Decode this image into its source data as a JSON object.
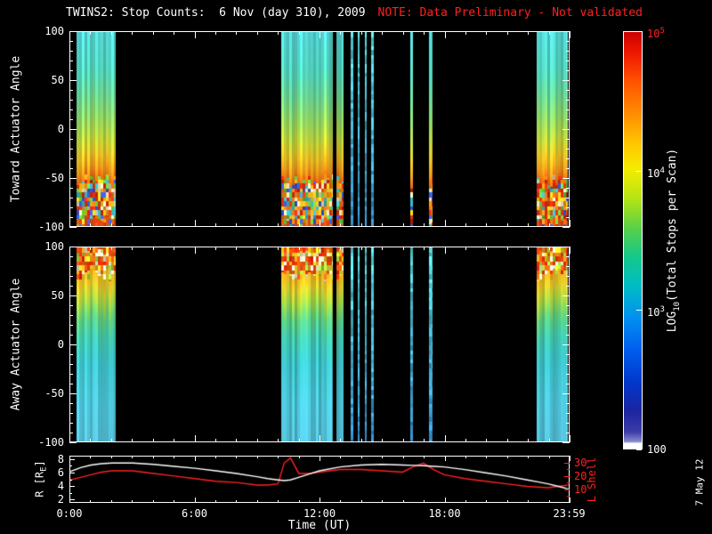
{
  "title": {
    "main": "TWINS2: Stop Counts:  6 Nov (day 310), 2009",
    "note": "NOTE: Data Preliminary - Not validated"
  },
  "date_stamp": "7 May 12",
  "colors": {
    "background": "#000000",
    "foreground": "#ffffff",
    "note": "#ff2020",
    "l_shell": "#ff2020"
  },
  "x_axis": {
    "label": "Time (UT)",
    "range_hours": [
      0,
      24
    ],
    "tick_hours": [
      0,
      6,
      12,
      18,
      23.983
    ],
    "tick_labels": [
      "0:00",
      "6:00",
      "12:00",
      "18:00",
      "23:59"
    ]
  },
  "panels": {
    "toward": {
      "ylabel": "Toward Actuator Angle",
      "y_ticks": [
        100,
        50,
        0,
        -50,
        -100
      ]
    },
    "away": {
      "ylabel": "Away Actuator Angle",
      "y_ticks": [
        100,
        50,
        0,
        -50,
        -100
      ]
    },
    "aux": {
      "left_label": {
        "pre": "R [R",
        "sub": "E",
        "post": "]"
      },
      "left_ticks": [
        8,
        6,
        4,
        2
      ],
      "left_range": [
        1.5,
        8.5
      ],
      "right_label": "L Shell",
      "right_ticks": [
        30,
        20,
        10
      ],
      "right_range": [
        0,
        35
      ]
    }
  },
  "colorbar": {
    "label": {
      "pre": "LOG",
      "sub": "10",
      "post": "(Total Stops per Scan)"
    },
    "ticks": [
      {
        "base": "10",
        "exp": "5",
        "frac": 0.0,
        "color": "#ff2020"
      },
      {
        "base": "10",
        "exp": "4",
        "frac": 0.3333,
        "color": "#ffffff"
      },
      {
        "base": "10",
        "exp": "3",
        "frac": 0.6667,
        "color": "#ffffff"
      },
      {
        "base": "100",
        "exp": "",
        "frac": 1.0,
        "color": "#ffffff"
      }
    ],
    "gradient_stops": [
      [
        0,
        "#cc0000"
      ],
      [
        5,
        "#ee1800"
      ],
      [
        12,
        "#ff5400"
      ],
      [
        20,
        "#ff9000"
      ],
      [
        27,
        "#ffc800"
      ],
      [
        33,
        "#f4ec00"
      ],
      [
        40,
        "#b4e414"
      ],
      [
        47,
        "#5ad048"
      ],
      [
        54,
        "#14c88c"
      ],
      [
        61,
        "#00bcc4"
      ],
      [
        68,
        "#0094ee"
      ],
      [
        76,
        "#0060ee"
      ],
      [
        84,
        "#0038cc"
      ],
      [
        91,
        "#1c24a0"
      ],
      [
        96,
        "#3c3ca8"
      ],
      [
        98.3,
        "#8888cc"
      ],
      [
        98.8,
        "#ffffff"
      ],
      [
        100,
        "#ffffff"
      ]
    ]
  },
  "chart_data": [
    {
      "type": "heatmap",
      "name": "toward",
      "title": "Toward Actuator Angle vs Time (UT), log10 stop counts",
      "x_range_hours": [
        0,
        24
      ],
      "y_range": [
        -100,
        100
      ],
      "y_ticks": [
        100,
        50,
        0,
        -50,
        -100
      ],
      "seed": 3,
      "segments": [
        {
          "s": 0.3,
          "e": 2.2
        },
        {
          "s": 10.15,
          "e": 12.65
        },
        {
          "s": 12.8,
          "e": 13.15
        },
        {
          "s": 13.5,
          "e": 13.62,
          "cool": true
        },
        {
          "s": 13.85,
          "e": 13.95,
          "cool": true
        },
        {
          "s": 14.18,
          "e": 14.28,
          "cool": true
        },
        {
          "s": 14.5,
          "e": 14.6,
          "cool": true
        },
        {
          "s": 16.35,
          "e": 16.5
        },
        {
          "s": 17.25,
          "e": 17.45
        },
        {
          "s": 22.45,
          "e": 23.95
        }
      ],
      "gradient": [
        [
          100,
          "#55d8d8"
        ],
        [
          60,
          "#53d8c0"
        ],
        [
          35,
          "#6cd896"
        ],
        [
          10,
          "#94d964"
        ],
        [
          -12,
          "#c6d83a"
        ],
        [
          -28,
          "#ecc224"
        ],
        [
          -42,
          "#f29a1a"
        ],
        [
          -52,
          "#f2660f"
        ],
        [
          -100,
          "#ea4a0c"
        ]
      ],
      "mottle": {
        "from": -52,
        "to": -96,
        "palette": [
          "#e83010",
          "#f07418",
          "#f0c81e",
          "#64c83c",
          "#38b8c8",
          "#3858d8",
          "#ecdcb4",
          "#f09a1a",
          "#d02808"
        ]
      },
      "cool_colors": [
        "#58d8d8",
        "#3890d0"
      ]
    },
    {
      "type": "heatmap",
      "name": "away",
      "title": "Away Actuator Angle vs Time (UT), log10 stop counts",
      "x_range_hours": [
        0,
        24
      ],
      "y_range": [
        -100,
        100
      ],
      "y_ticks": [
        100,
        50,
        0,
        -50,
        -100
      ],
      "seed": 11,
      "segments": [
        {
          "s": 0.3,
          "e": 2.2
        },
        {
          "s": 10.15,
          "e": 12.65
        },
        {
          "s": 12.8,
          "e": 13.15
        },
        {
          "s": 13.5,
          "e": 13.62,
          "cool": true
        },
        {
          "s": 13.85,
          "e": 13.95,
          "cool": true
        },
        {
          "s": 14.18,
          "e": 14.28,
          "cool": true
        },
        {
          "s": 14.5,
          "e": 14.6,
          "cool": true
        },
        {
          "s": 16.35,
          "e": 16.5,
          "cool": true
        },
        {
          "s": 17.25,
          "e": 17.45,
          "cool": true
        },
        {
          "s": 22.45,
          "e": 23.95
        }
      ],
      "gradient": [
        [
          100,
          "#ee4410"
        ],
        [
          86,
          "#f07c16"
        ],
        [
          72,
          "#eeb01e"
        ],
        [
          58,
          "#d8cc2c"
        ],
        [
          44,
          "#a2d444"
        ],
        [
          28,
          "#5ecc7c"
        ],
        [
          8,
          "#42c8ac"
        ],
        [
          -16,
          "#3cc2c8"
        ],
        [
          -60,
          "#4cc4d8"
        ],
        [
          -100,
          "#54bcd4"
        ]
      ],
      "mottle": {
        "from": 72,
        "to": 100,
        "palette": [
          "#e02808",
          "#f06414",
          "#f0a81c",
          "#f0d822",
          "#a8d43c",
          "#f0f0d0",
          "#e84c10"
        ]
      },
      "cool_colors": [
        "#58d8d8",
        "#3890d0"
      ]
    },
    {
      "type": "line",
      "name": "aux",
      "title": "Spacecraft radial distance and L Shell vs Time (UT)",
      "x_axis": {
        "label": "Time (UT)",
        "range": [
          0,
          24
        ]
      },
      "left_axis": {
        "label": "R [RE]",
        "range": [
          1.5,
          8.5
        ],
        "ticks": [
          2,
          4,
          6,
          8
        ]
      },
      "right_axis": {
        "label": "L Shell",
        "range": [
          0,
          35
        ],
        "ticks": [
          10,
          20,
          30
        ],
        "color": "#ff2020"
      },
      "series": [
        {
          "name": "L Shell",
          "color": "#ff2020",
          "axis": "right",
          "x": [
            0,
            0.5,
            1,
            1.5,
            2,
            3,
            4,
            5,
            6,
            7,
            8,
            9,
            9.5,
            10,
            10.3,
            10.6,
            11,
            11.5,
            12,
            13,
            14,
            15,
            16,
            16.5,
            17,
            17.5,
            18,
            19,
            20,
            21,
            22,
            22.5,
            23,
            23.5,
            23.98
          ],
          "y": [
            17,
            19,
            21,
            23,
            24,
            24,
            22,
            20,
            18,
            16,
            15,
            13,
            13,
            14,
            30,
            34,
            22,
            22,
            23,
            25,
            25,
            24,
            23,
            27,
            30,
            25,
            21,
            18,
            16,
            14,
            12,
            11.5,
            11,
            12,
            13
          ]
        },
        {
          "name": "R [RE]",
          "color": "#ffffff",
          "axis": "left",
          "x": [
            0,
            0.5,
            1,
            1.5,
            2,
            3,
            4,
            5,
            6,
            7,
            8,
            9,
            9.5,
            10,
            10.3,
            10.6,
            11,
            11.5,
            12,
            13,
            14,
            15,
            16,
            16.5,
            17,
            17.5,
            18,
            19,
            20,
            21,
            22,
            22.5,
            23,
            23.5,
            23.98
          ],
          "y": [
            6.2,
            6.8,
            7.2,
            7.4,
            7.5,
            7.5,
            7.3,
            7.0,
            6.7,
            6.3,
            5.9,
            5.4,
            5.1,
            4.9,
            4.8,
            4.9,
            5.3,
            5.8,
            6.3,
            6.9,
            7.2,
            7.3,
            7.2,
            7.15,
            7.1,
            7.0,
            6.9,
            6.5,
            6.0,
            5.5,
            4.9,
            4.6,
            4.3,
            3.9,
            3.5
          ]
        }
      ]
    }
  ]
}
